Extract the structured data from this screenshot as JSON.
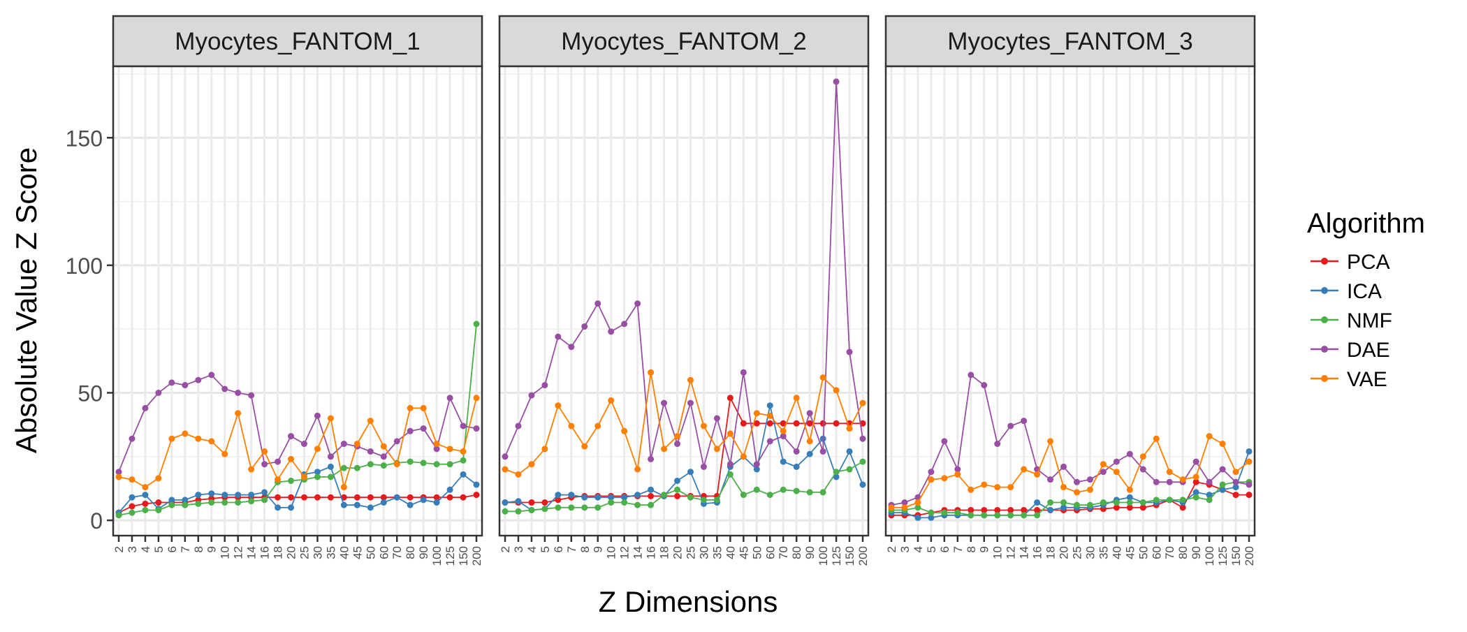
{
  "chart_data": {
    "type": "line",
    "ylabel": "Absolute Value Z Score",
    "xlabel": "Z Dimensions",
    "yticks": [
      0,
      50,
      100,
      150
    ],
    "ylim": [
      -6,
      178
    ],
    "grid": true,
    "legend_position": "right",
    "legend_title": "Algorithm",
    "categories": [
      "2",
      "3",
      "4",
      "5",
      "6",
      "7",
      "8",
      "9",
      "10",
      "12",
      "14",
      "16",
      "18",
      "20",
      "25",
      "30",
      "35",
      "40",
      "45",
      "50",
      "60",
      "70",
      "80",
      "90",
      "100",
      "125",
      "150",
      "200"
    ],
    "series_colors": {
      "PCA": "#e41a1c",
      "ICA": "#377eb8",
      "NMF": "#4daf4a",
      "DAE": "#984ea3",
      "VAE": "#ff7f00"
    },
    "panels": [
      {
        "title": "Myocytes_FANTOM_1",
        "series": [
          {
            "name": "PCA",
            "values": [
              3,
              5.5,
              6.5,
              7,
              7,
              7,
              8,
              8.5,
              9,
              9,
              9,
              9,
              9,
              9,
              9,
              9,
              9,
              9,
              9,
              9,
              9,
              9,
              9,
              9,
              9,
              9,
              9,
              10
            ]
          },
          {
            "name": "ICA",
            "values": [
              3,
              9,
              10,
              4.5,
              8,
              8,
              10,
              10.5,
              10,
              10,
              10,
              11,
              5,
              5,
              18,
              19,
              21,
              6,
              6,
              5,
              7,
              9,
              6,
              8,
              7,
              12,
              18,
              14
            ]
          },
          {
            "name": "NMF",
            "values": [
              2,
              3,
              4,
              4,
              6,
              6,
              6.5,
              7,
              7,
              7,
              7.5,
              8,
              15,
              15.5,
              16,
              17,
              17,
              20.5,
              20.5,
              22,
              21.5,
              22.5,
              23,
              22.5,
              22,
              22,
              23.5,
              77
            ]
          },
          {
            "name": "DAE",
            "values": [
              19,
              32,
              44,
              50,
              54,
              53,
              55,
              57,
              51.5,
              50,
              49,
              22,
              23,
              33,
              30,
              41,
              25,
              30,
              29,
              27,
              25,
              31,
              35,
              36,
              28,
              48,
              37,
              36
            ]
          },
          {
            "name": "VAE",
            "values": [
              17,
              16,
              13,
              16.5,
              32,
              34,
              32,
              31,
              26,
              42,
              20,
              27,
              16,
              24,
              17,
              28,
              40,
              13,
              30,
              39,
              29,
              22,
              44,
              44,
              30,
              28,
              27,
              48
            ]
          }
        ]
      },
      {
        "title": "Myocytes_FANTOM_2",
        "series": [
          {
            "name": "PCA",
            "values": [
              7,
              7,
              7,
              7,
              8,
              9,
              9.5,
              9.5,
              9.5,
              9.5,
              9.5,
              9.5,
              9.5,
              9.5,
              9.5,
              9.5,
              9.5,
              48,
              38,
              38,
              38,
              38,
              38,
              38,
              38,
              38,
              38,
              38
            ]
          },
          {
            "name": "ICA",
            "values": [
              7,
              7.5,
              4,
              4.5,
              10,
              10,
              9,
              9,
              9,
              9,
              10,
              12,
              9.5,
              15.5,
              19,
              6.5,
              7,
              21,
              25,
              20,
              45,
              23,
              21,
              26,
              32,
              17,
              27,
              14
            ]
          },
          {
            "name": "NMF",
            "values": [
              3.5,
              3.5,
              4,
              4.5,
              5,
              5,
              5,
              5,
              7,
              7,
              6,
              6,
              10,
              12,
              9,
              8,
              8,
              18,
              10,
              12,
              10,
              12,
              11.5,
              11,
              11,
              19,
              20,
              23
            ]
          },
          {
            "name": "DAE",
            "values": [
              25,
              37,
              49,
              53,
              72,
              68,
              76,
              85,
              74,
              77,
              85,
              24,
              46,
              30,
              46,
              21,
              40,
              22,
              58,
              22,
              31,
              33,
              27,
              42,
              27,
              172,
              66,
              32
            ]
          },
          {
            "name": "VAE",
            "values": [
              20,
              18,
              22,
              28,
              45,
              37,
              29,
              37,
              47,
              35,
              20,
              58,
              28,
              33,
              55,
              37,
              28,
              34,
              25,
              42,
              41,
              35,
              48,
              31,
              56,
              51,
              36,
              46
            ]
          }
        ]
      },
      {
        "title": "Myocytes_FANTOM_3",
        "series": [
          {
            "name": "PCA",
            "values": [
              2,
              2,
              2,
              3,
              4,
              4,
              4,
              4,
              4,
              4,
              4,
              4,
              4,
              4,
              4,
              4.5,
              4.5,
              5,
              5,
              5,
              6,
              8,
              5,
              15,
              14,
              12,
              10,
              10
            ]
          },
          {
            "name": "ICA",
            "values": [
              3,
              3,
              1,
              1,
              2,
              2,
              2,
              2,
              2,
              2,
              2,
              7,
              4,
              5,
              5,
              5,
              6,
              8,
              9,
              7,
              7,
              8,
              7,
              11,
              10,
              12,
              13,
              27
            ]
          },
          {
            "name": "NMF",
            "values": [
              4,
              4,
              5,
              3,
              3,
              3,
              2,
              2,
              2,
              2,
              2,
              2,
              7,
              7,
              6,
              6,
              7,
              7,
              7,
              7,
              8,
              8,
              8,
              9,
              8,
              14,
              15,
              15
            ]
          },
          {
            "name": "DAE",
            "values": [
              6,
              7,
              9,
              19,
              31,
              20,
              57,
              53,
              30,
              37,
              39,
              20,
              16,
              21,
              15,
              16,
              19,
              23,
              26,
              20,
              15,
              15,
              15,
              23,
              15,
              20,
              15,
              14
            ]
          },
          {
            "name": "VAE",
            "values": [
              5,
              5,
              7,
              16,
              16.5,
              18,
              12,
              14,
              13,
              13,
              20,
              18,
              31,
              13,
              11,
              12,
              22,
              19,
              12,
              25,
              32,
              19,
              16,
              17,
              33,
              30,
              19,
              23
            ]
          }
        ]
      }
    ]
  }
}
